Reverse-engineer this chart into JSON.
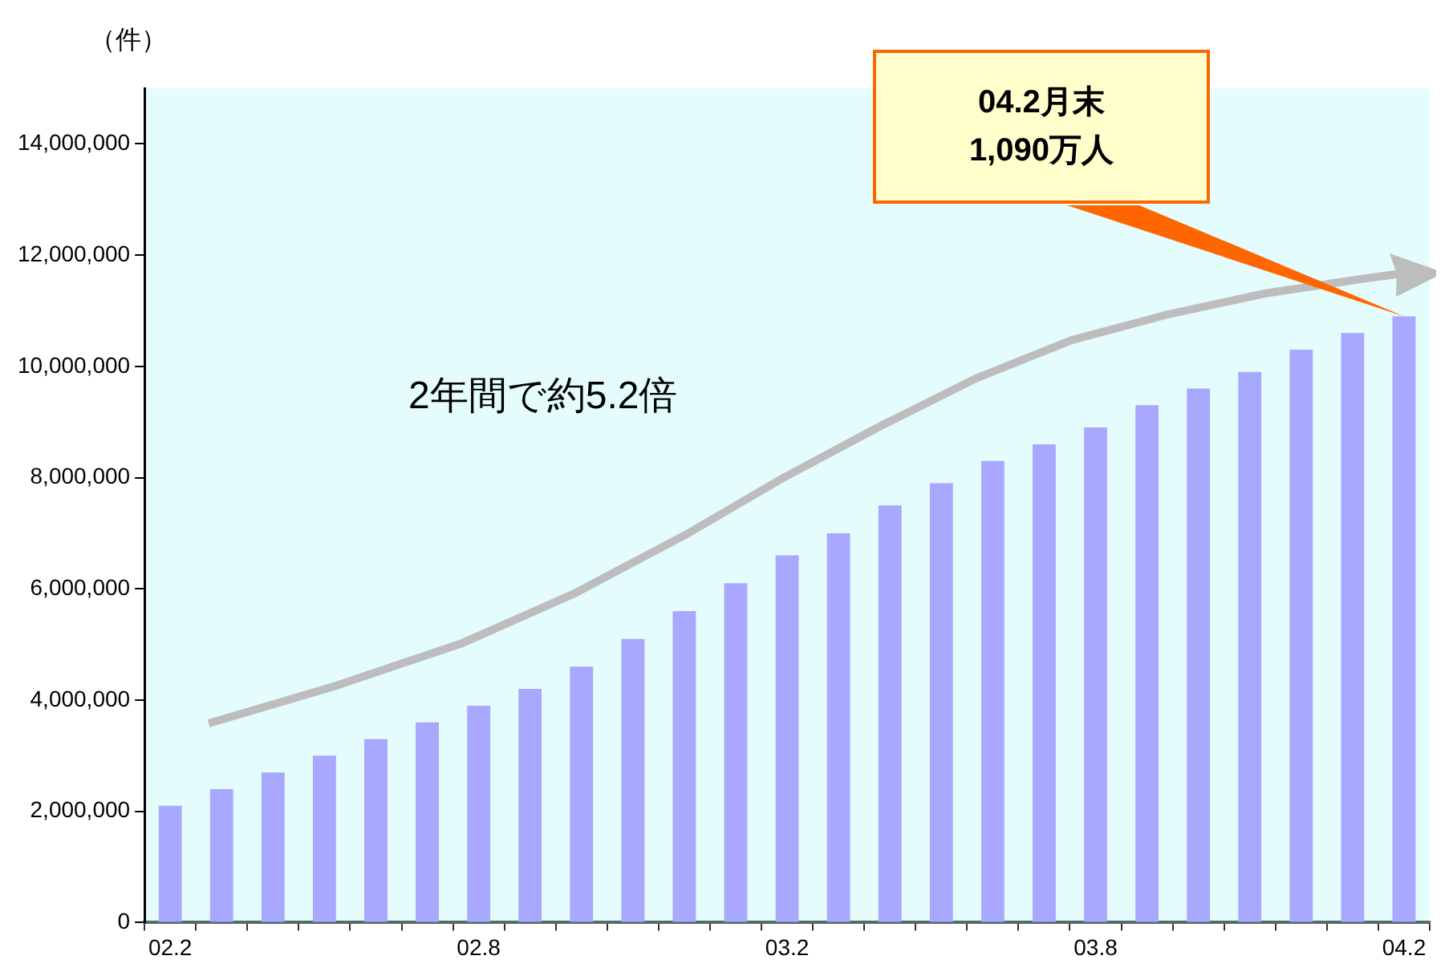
{
  "chart_data": {
    "type": "bar",
    "ylabel": "（件）",
    "categories": [
      "02.2",
      null,
      null,
      null,
      null,
      null,
      "02.8",
      null,
      null,
      null,
      null,
      null,
      "03.2",
      null,
      null,
      null,
      null,
      null,
      "03.8",
      null,
      null,
      null,
      null,
      null,
      "04.2"
    ],
    "series": [
      {
        "color": "#a8a8ff",
        "values": [
          2100000,
          2400000,
          2700000,
          3000000,
          3300000,
          3600000,
          3900000,
          4200000,
          4600000,
          5100000,
          5600000,
          6100000,
          6600000,
          7000000,
          7500000,
          7900000,
          8300000,
          8600000,
          8900000,
          9300000,
          9600000,
          9900000,
          10300000,
          10600000,
          10900000
        ]
      }
    ],
    "ylim": [
      0,
      15000000
    ],
    "yticks": [
      0,
      {
        "value": 2000000,
        "label": "2,000,000"
      },
      {
        "value": 4000000,
        "label": "4,000,000"
      },
      {
        "value": 6000000,
        "label": "6,000,000"
      },
      {
        "value": 8000000,
        "label": "8,000,000"
      },
      {
        "value": 10000000,
        "label": "10,000,000"
      },
      {
        "value": 12000000,
        "label": "12,000,000"
      },
      {
        "value": 14000000,
        "label": "14,000,000"
      }
    ],
    "annotations": [
      "2年間で約5.2倍",
      {
        "text": "04.2月末\n1,090万人",
        "x": "04.2",
        "y": 10900000
      }
    ]
  }
}
